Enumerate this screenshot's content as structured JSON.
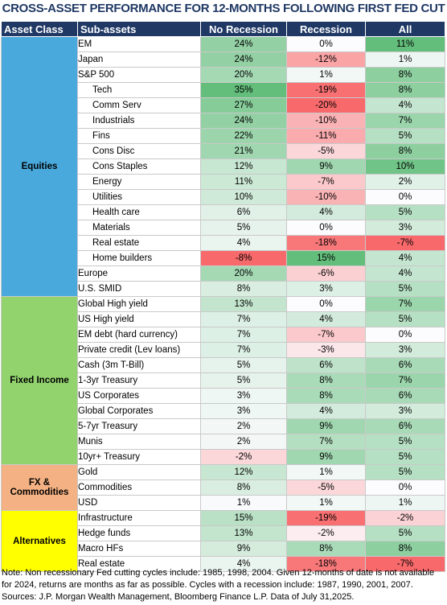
{
  "title": "CROSS-ASSET PERFORMANCE FOR 12-MONTHS FOLLOWING FIRST FED CUT",
  "headers": [
    "Asset Class",
    "Sub-assets",
    "No Recession",
    "Recession",
    "All"
  ],
  "colors": {
    "header_bg": "#1f3864",
    "equities": "#4aa9dc",
    "fixed_income": "#92d36e",
    "fx_commodities": "#f4b183",
    "alternatives": "#ffff00"
  },
  "groups": [
    {
      "name": "Equities",
      "color": "#4aa9dc",
      "rows": [
        {
          "label": "EM",
          "indent": false,
          "values": [
            "24%",
            "0%",
            "11%"
          ],
          "nums": [
            24,
            0,
            11
          ]
        },
        {
          "label": "Japan",
          "indent": false,
          "values": [
            "24%",
            "-12%",
            "1%"
          ],
          "nums": [
            24,
            -12,
            1
          ]
        },
        {
          "label": "S&P 500",
          "indent": false,
          "values": [
            "20%",
            "1%",
            "8%"
          ],
          "nums": [
            20,
            1,
            8
          ]
        },
        {
          "label": "Tech",
          "indent": true,
          "values": [
            "35%",
            "-19%",
            "8%"
          ],
          "nums": [
            35,
            -19,
            8
          ]
        },
        {
          "label": "Comm Serv",
          "indent": true,
          "values": [
            "27%",
            "-20%",
            "4%"
          ],
          "nums": [
            27,
            -20,
            4
          ]
        },
        {
          "label": "Industrials",
          "indent": true,
          "values": [
            "24%",
            "-10%",
            "7%"
          ],
          "nums": [
            24,
            -10,
            7
          ]
        },
        {
          "label": "Fins",
          "indent": true,
          "values": [
            "22%",
            "-11%",
            "5%"
          ],
          "nums": [
            22,
            -11,
            5
          ]
        },
        {
          "label": "Cons Disc",
          "indent": true,
          "values": [
            "21%",
            "-5%",
            "8%"
          ],
          "nums": [
            21,
            -5,
            8
          ]
        },
        {
          "label": "Cons Staples",
          "indent": true,
          "values": [
            "12%",
            "9%",
            "10%"
          ],
          "nums": [
            12,
            9,
            10
          ]
        },
        {
          "label": "Energy",
          "indent": true,
          "values": [
            "11%",
            "-7%",
            "2%"
          ],
          "nums": [
            11,
            -7,
            2
          ]
        },
        {
          "label": "Utilities",
          "indent": true,
          "values": [
            "10%",
            "-10%",
            "0%"
          ],
          "nums": [
            10,
            -10,
            0
          ]
        },
        {
          "label": "Health care",
          "indent": true,
          "values": [
            "6%",
            "4%",
            "5%"
          ],
          "nums": [
            6,
            4,
            5
          ]
        },
        {
          "label": "Materials",
          "indent": true,
          "values": [
            "5%",
            "0%",
            "3%"
          ],
          "nums": [
            5,
            0,
            3
          ]
        },
        {
          "label": "Real estate",
          "indent": true,
          "values": [
            "4%",
            "-18%",
            "-7%"
          ],
          "nums": [
            4,
            -18,
            -7
          ]
        },
        {
          "label": "Home builders",
          "indent": true,
          "values": [
            "-8%",
            "15%",
            "4%"
          ],
          "nums": [
            -8,
            15,
            4
          ]
        },
        {
          "label": "Europe",
          "indent": false,
          "values": [
            "20%",
            "-6%",
            "4%"
          ],
          "nums": [
            20,
            -6,
            4
          ]
        },
        {
          "label": "U.S. SMID",
          "indent": false,
          "values": [
            "8%",
            "3%",
            "5%"
          ],
          "nums": [
            8,
            3,
            5
          ]
        }
      ]
    },
    {
      "name": "Fixed Income",
      "color": "#92d36e",
      "rows": [
        {
          "label": "Global High yield",
          "indent": false,
          "values": [
            "13%",
            "0%",
            "7%"
          ],
          "nums": [
            13,
            0,
            7
          ]
        },
        {
          "label": "US High yield",
          "indent": false,
          "values": [
            "7%",
            "4%",
            "5%"
          ],
          "nums": [
            7,
            4,
            5
          ]
        },
        {
          "label": "EM debt (hard currency)",
          "indent": false,
          "values": [
            "7%",
            "-7%",
            "0%"
          ],
          "nums": [
            7,
            -7,
            0
          ]
        },
        {
          "label": "Private credit (Lev loans)",
          "indent": false,
          "values": [
            "7%",
            "-3%",
            "3%"
          ],
          "nums": [
            7,
            -3,
            3
          ]
        },
        {
          "label": "Cash (3m T-Bill)",
          "indent": false,
          "values": [
            "5%",
            "6%",
            "6%"
          ],
          "nums": [
            5,
            6,
            6
          ]
        },
        {
          "label": "1-3yr Treasury",
          "indent": false,
          "values": [
            "5%",
            "8%",
            "7%"
          ],
          "nums": [
            5,
            8,
            7
          ]
        },
        {
          "label": "US Corporates",
          "indent": false,
          "values": [
            "3%",
            "8%",
            "6%"
          ],
          "nums": [
            3,
            8,
            6
          ]
        },
        {
          "label": "Global Corporates",
          "indent": false,
          "values": [
            "3%",
            "4%",
            "3%"
          ],
          "nums": [
            3,
            4,
            3
          ]
        },
        {
          "label": "5-7yr Treasury",
          "indent": false,
          "values": [
            "2%",
            "9%",
            "6%"
          ],
          "nums": [
            2,
            9,
            6
          ]
        },
        {
          "label": "Munis",
          "indent": false,
          "values": [
            "2%",
            "7%",
            "5%"
          ],
          "nums": [
            2,
            7,
            5
          ]
        },
        {
          "label": "10yr+ Treasury",
          "indent": false,
          "values": [
            "-2%",
            "9%",
            "5%"
          ],
          "nums": [
            -2,
            9,
            5
          ]
        }
      ]
    },
    {
      "name": "FX & Commodities",
      "color": "#f4b183",
      "rows": [
        {
          "label": "Gold",
          "indent": false,
          "values": [
            "12%",
            "1%",
            "5%"
          ],
          "nums": [
            12,
            1,
            5
          ]
        },
        {
          "label": "Commodities",
          "indent": false,
          "values": [
            "8%",
            "-5%",
            "0%"
          ],
          "nums": [
            8,
            -5,
            0
          ]
        },
        {
          "label": "USD",
          "indent": false,
          "values": [
            "1%",
            "1%",
            "1%"
          ],
          "nums": [
            1,
            1,
            1
          ]
        }
      ]
    },
    {
      "name": "Alternatives",
      "color": "#ffff00",
      "rows": [
        {
          "label": "Infrastructure",
          "indent": false,
          "values": [
            "15%",
            "-19%",
            "-2%"
          ],
          "nums": [
            15,
            -19,
            -2
          ]
        },
        {
          "label": "Hedge funds",
          "indent": false,
          "values": [
            "13%",
            "-2%",
            "5%"
          ],
          "nums": [
            13,
            -2,
            5
          ]
        },
        {
          "label": "Macro HFs",
          "indent": false,
          "values": [
            "9%",
            "8%",
            "8%"
          ],
          "nums": [
            9,
            8,
            8
          ]
        },
        {
          "label": "Real estate",
          "indent": false,
          "values": [
            "4%",
            "-18%",
            "-7%"
          ],
          "nums": [
            4,
            -18,
            -7
          ]
        }
      ]
    }
  ],
  "note": "Note: Non recessionary Fed cutting cycles include: 1985, 1998, 2004. Given 12-months of date is not available for 2024, returns are months as far as possible.  Cycles with a recession include: 1987, 1990, 2001, 2007. Sources: J.P. Morgan Wealth Management, Bloomberg Finance L.P. Data of July 31,2025."
}
